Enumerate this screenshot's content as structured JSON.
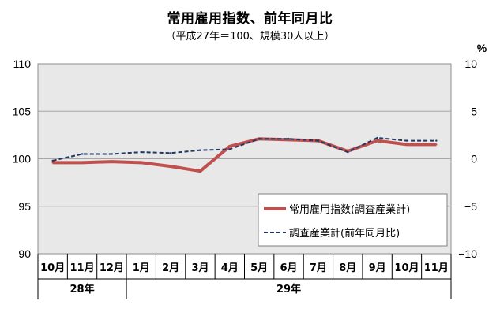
{
  "chart_data": {
    "type": "line",
    "title": "常用雇用指数、前年同月比",
    "subtitle": "（平成27年＝100、規模30人以上）",
    "left_axis": {
      "ylim": [
        90,
        110
      ],
      "ticks": [
        "110",
        "105",
        "100",
        "95",
        "90"
      ]
    },
    "right_axis": {
      "unit": "%",
      "ylim": [
        -10,
        10
      ],
      "ticks": [
        "10",
        "5",
        "0",
        "−5",
        "−10"
      ]
    },
    "categories": [
      "10月",
      "11月",
      "12月",
      "1月",
      "2月",
      "3月",
      "4月",
      "5月",
      "6月",
      "7月",
      "8月",
      "9月",
      "10月",
      "11月"
    ],
    "year_groups": [
      {
        "label": "28年",
        "span": 3
      },
      {
        "label": "29年",
        "span": 11
      }
    ],
    "series": [
      {
        "name": "常用雇用指数(調査産業計)",
        "axis": "left",
        "color": "#c0504d",
        "values": [
          99.6,
          99.6,
          99.7,
          99.6,
          99.2,
          98.7,
          101.3,
          102.1,
          102.0,
          101.9,
          100.8,
          101.9,
          101.5,
          101.5
        ]
      },
      {
        "name": "調査産業計(前年同月比)",
        "axis": "right",
        "color": "#1f3864",
        "values": [
          -0.2,
          0.5,
          0.5,
          0.7,
          0.6,
          0.9,
          1.0,
          2.1,
          2.1,
          1.9,
          0.7,
          2.2,
          1.9,
          1.9
        ]
      }
    ],
    "grid": true,
    "legend_position": "bottom-right inside plot"
  }
}
